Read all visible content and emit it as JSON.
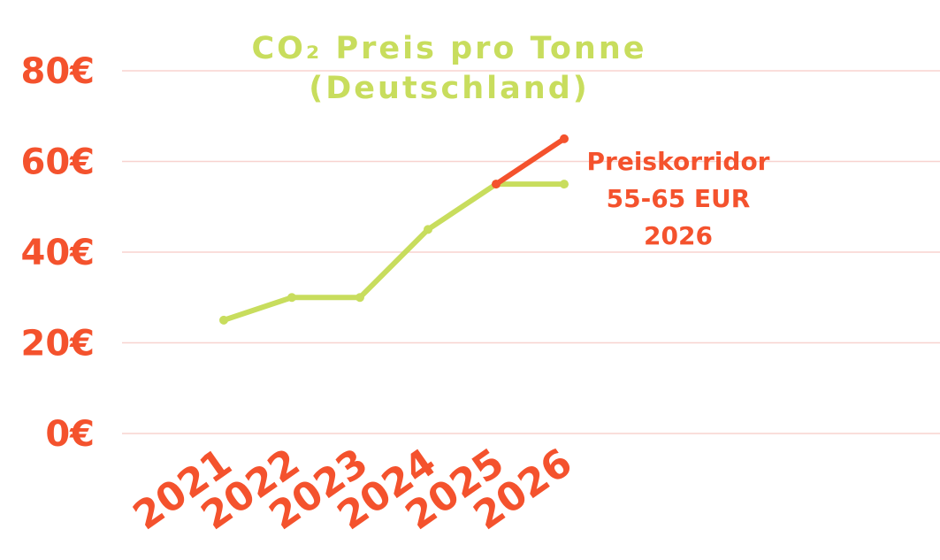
{
  "chart_data": {
    "type": "line",
    "title_lines": [
      "CO₂ Preis pro Tonne",
      "(Deutschland)"
    ],
    "xlabel": "",
    "ylabel": "",
    "categories": [
      "2021",
      "2022",
      "2023",
      "2024",
      "2025",
      "2026"
    ],
    "ylim": [
      0,
      80
    ],
    "yticks": [
      0,
      20,
      40,
      60,
      80
    ],
    "ytick_labels": [
      "0€",
      "20€",
      "40€",
      "60€",
      "80€"
    ],
    "grid": true,
    "series": [
      {
        "color": "#c8dd5d",
        "x": [
          "2021",
          "2022",
          "2023",
          "2024",
          "2025",
          "2026"
        ],
        "values": [
          25,
          30,
          30,
          45,
          55,
          55
        ]
      },
      {
        "color": "#f4522d",
        "x": [
          "2025",
          "2026"
        ],
        "values": [
          55,
          65
        ]
      }
    ],
    "annotation_lines": [
      "Preiskorridor",
      "55-65 EUR",
      "2026"
    ],
    "colors": {
      "accent": "#f4522d",
      "title": "#c8dd5d",
      "grid": "#f8d3cf"
    }
  }
}
